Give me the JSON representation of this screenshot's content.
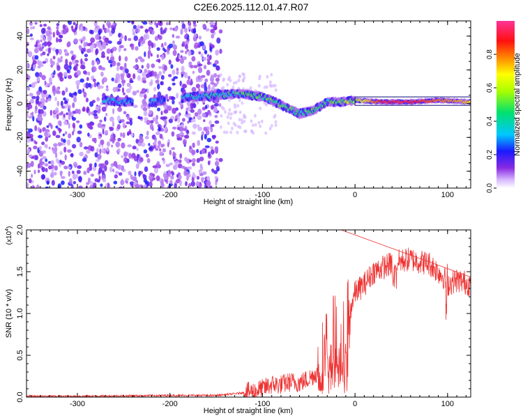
{
  "title": "C2E6.2025.112.01.47.R07",
  "chart_data": [
    {
      "type": "heatmap",
      "title": "C2E6.2025.112.01.47.R07",
      "xlabel": "Height of straight line (km)",
      "ylabel": "Frequency (Hz)",
      "xlim": [
        -355,
        125
      ],
      "ylim": [
        -50,
        49
      ],
      "xticks": [
        -300,
        -200,
        -100,
        0,
        100
      ],
      "yticks": [
        -40,
        -20,
        0,
        20,
        40
      ],
      "x_tick_labels": [
        "-300",
        "-200",
        "-100",
        "0",
        "100"
      ],
      "y_tick_labels": [
        "-40",
        "-20",
        "0",
        "20",
        "40"
      ],
      "colorbar": {
        "label": "Normalized spectral amplitude",
        "range": [
          0,
          1
        ],
        "ticks": [
          0.0,
          0.2,
          0.4,
          0.6,
          0.8
        ],
        "tick_labels": [
          "0.0",
          "0.2",
          "0.4",
          "0.6",
          "0.8"
        ]
      },
      "doppler_track": [
        {
          "x": -270,
          "y": 2,
          "v": 0.35
        },
        {
          "x": -250,
          "y": 1,
          "v": 0.3
        },
        {
          "x": -215,
          "y": 1,
          "v": 0.3
        },
        {
          "x": -180,
          "y": 4,
          "v": 0.35
        },
        {
          "x": -150,
          "y": 5,
          "v": 0.4
        },
        {
          "x": -125,
          "y": 6,
          "v": 0.45
        },
        {
          "x": -100,
          "y": 4,
          "v": 0.5
        },
        {
          "x": -90,
          "y": 2,
          "v": 0.5
        },
        {
          "x": -75,
          "y": -2,
          "v": 0.5
        },
        {
          "x": -60,
          "y": -6,
          "v": 0.5
        },
        {
          "x": -45,
          "y": -4,
          "v": 0.45
        },
        {
          "x": -30,
          "y": 1,
          "v": 0.45
        },
        {
          "x": -15,
          "y": 1,
          "v": 0.5
        },
        {
          "x": 0,
          "y": 2,
          "v": 0.55
        },
        {
          "x": 30,
          "y": 1,
          "v": 0.9
        },
        {
          "x": 60,
          "y": 1,
          "v": 0.9
        },
        {
          "x": 90,
          "y": 2,
          "v": 0.8
        },
        {
          "x": 125,
          "y": 1,
          "v": 0.7
        }
      ]
    },
    {
      "type": "line",
      "xlabel": "Height of straight line (km)",
      "ylabel": "SNR (10 * v/v)",
      "y_multiplier_label": "(x10",
      "y_multiplier_exp": "4",
      "y_multiplier_close": ")",
      "xlim": [
        -355,
        125
      ],
      "ylim": [
        0,
        2.0
      ],
      "xticks": [
        -300,
        -200,
        -100,
        0,
        100
      ],
      "yticks": [
        0,
        0.5,
        1.0,
        1.5,
        2.0
      ],
      "x_tick_labels": [
        "-300",
        "-200",
        "-100",
        "0",
        "100"
      ],
      "y_tick_labels": [
        "0.0",
        "0.5",
        "1.0",
        "1.5",
        "2.0"
      ],
      "series": [
        {
          "name": "SNR",
          "color": "#ee3333",
          "x": [
            -355,
            -300,
            -250,
            -200,
            -150,
            -130,
            -110,
            -100,
            -90,
            -80,
            -70,
            -60,
            -50,
            -40,
            -35,
            -30,
            -25,
            -20,
            -15,
            -10,
            -5,
            0,
            5,
            10,
            20,
            30,
            40,
            50,
            60,
            70,
            80,
            90,
            95,
            100,
            110,
            125
          ],
          "y": [
            0.01,
            0.01,
            0.015,
            0.02,
            0.02,
            0.04,
            0.07,
            0.1,
            0.15,
            0.15,
            0.18,
            0.17,
            0.22,
            0.3,
            0.5,
            0.75,
            0.8,
            0.75,
            0.55,
            0.9,
            1.05,
            1.25,
            1.3,
            1.35,
            1.5,
            1.55,
            1.6,
            1.63,
            1.65,
            1.62,
            1.6,
            1.5,
            1.45,
            1.35,
            1.4,
            1.35
          ]
        }
      ]
    }
  ]
}
